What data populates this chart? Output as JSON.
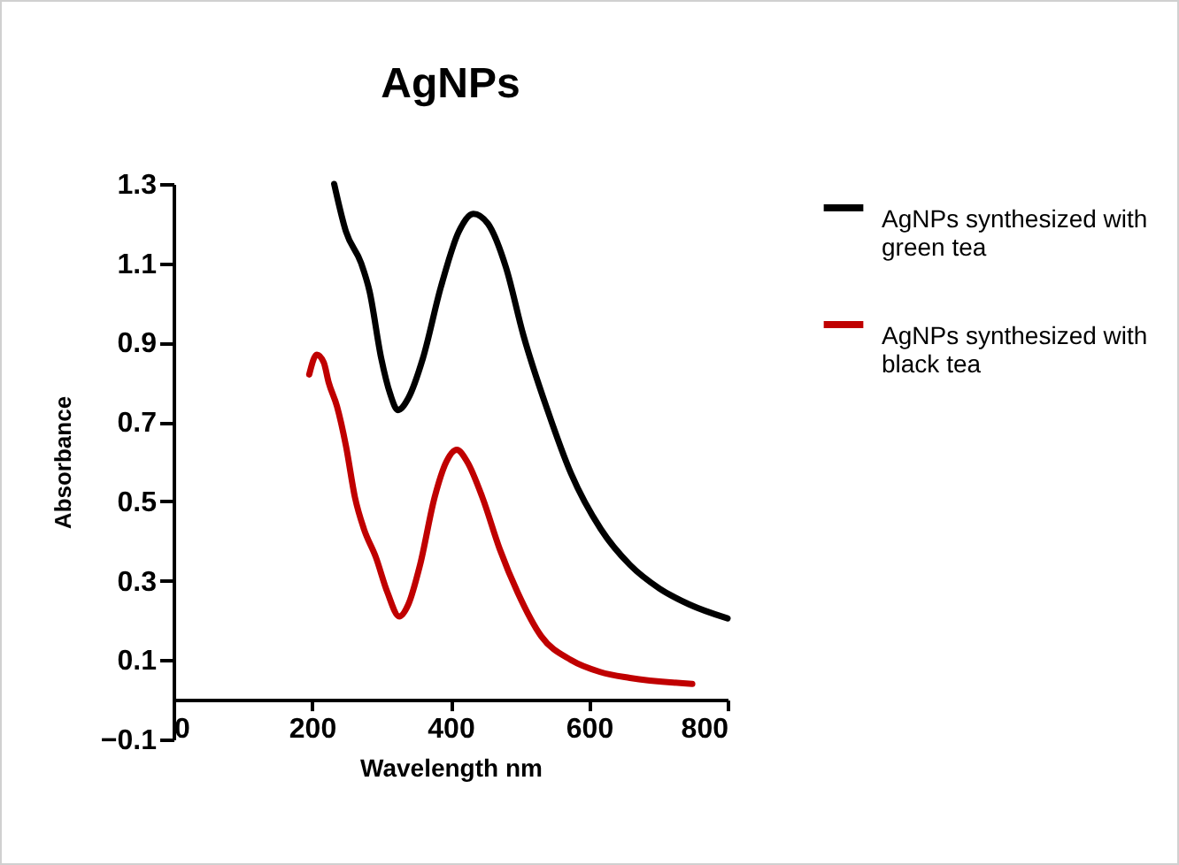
{
  "chart_data": {
    "type": "line",
    "title": "AgNPs",
    "xlabel": "Wavelength nm",
    "ylabel": "Absorbance",
    "xlim": [
      0,
      800
    ],
    "xticks": [
      0,
      200,
      400,
      600,
      800
    ],
    "ylim": [
      -0.1,
      1.3
    ],
    "yticks": [
      -0.1,
      0.1,
      0.3,
      0.5,
      0.7,
      0.9,
      1.1,
      1.3
    ],
    "grid": false,
    "legend": "right",
    "marker": "none",
    "line_style": "solid",
    "series": [
      {
        "name": "AgNPs synthesized with green tea",
        "color": "#000000",
        "x": [
          232,
          249,
          271,
          283,
          300,
          313,
          324,
          339,
          360,
          386,
          412,
          433,
          454,
          480,
          505,
          540,
          574,
          617,
          659,
          702,
          745,
          800
        ],
        "values": [
          1.3,
          1.18,
          1.1,
          1.03,
          0.86,
          0.77,
          0.73,
          0.76,
          0.86,
          1.04,
          1.18,
          1.225,
          1.2,
          1.09,
          0.92,
          0.73,
          0.57,
          0.43,
          0.34,
          0.28,
          0.24,
          0.205
        ]
      },
      {
        "name": "AgNPs synthesized with black tea",
        "color": "#c00000",
        "x": [
          196,
          207,
          217,
          224,
          236,
          249,
          262,
          275,
          292,
          309,
          326,
          339,
          356,
          377,
          394,
          409,
          424,
          446,
          471,
          497,
          531,
          574,
          616,
          659,
          749
        ],
        "values": [
          0.82,
          0.87,
          0.85,
          0.8,
          0.74,
          0.64,
          0.51,
          0.43,
          0.36,
          0.27,
          0.21,
          0.24,
          0.34,
          0.51,
          0.6,
          0.63,
          0.6,
          0.51,
          0.38,
          0.27,
          0.16,
          0.1,
          0.07,
          0.055,
          0.04
        ]
      }
    ]
  }
}
